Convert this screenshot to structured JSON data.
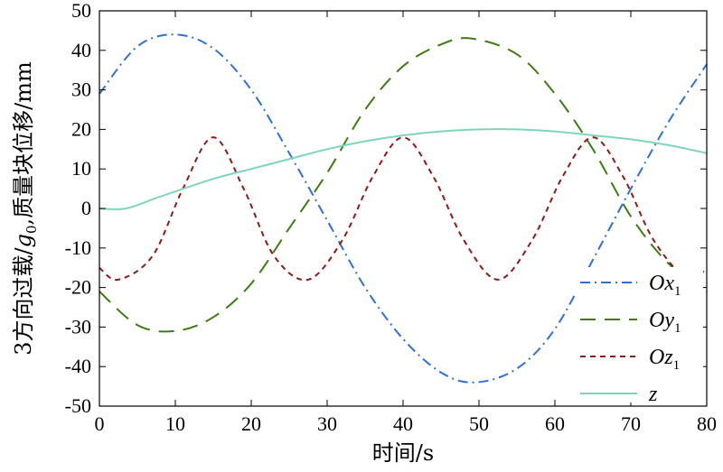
{
  "chart_data": {
    "type": "line",
    "xlabel": "时间/s",
    "ylabel_parts": [
      "3方向过载/",
      "g",
      "0",
      ",质量块位移/mm"
    ],
    "xlim": [
      0,
      80
    ],
    "ylim": [
      -50,
      50
    ],
    "x_ticks": [
      0,
      10,
      20,
      30,
      40,
      50,
      60,
      70,
      80
    ],
    "y_ticks": [
      -50,
      -40,
      -30,
      -20,
      -10,
      0,
      10,
      20,
      30,
      40,
      50
    ],
    "grid": false,
    "legend_position": "bottom-right",
    "series": [
      {
        "name": "Ox",
        "name_sub": "1",
        "color": "#2f6fd6",
        "dash": "dashdot",
        "x": [
          0,
          5,
          10,
          15,
          20,
          25,
          30,
          35,
          40,
          45,
          49.5,
          55,
          60,
          65,
          70,
          75,
          80
        ],
        "y": [
          29,
          41,
          44,
          40.5,
          30,
          14,
          -3,
          -20,
          -33,
          -41.5,
          -44,
          -40.5,
          -30.5,
          -13,
          5,
          22,
          36.5
        ]
      },
      {
        "name": "Oy",
        "name_sub": "1",
        "color": "#3f7a12",
        "dash": "longdash",
        "x": [
          0,
          5,
          10,
          15,
          20,
          25,
          30,
          35,
          40,
          45,
          49,
          55,
          60,
          65,
          70,
          75,
          80
        ],
        "y": [
          -21,
          -29.5,
          -31,
          -27.5,
          -19,
          -5,
          9,
          25,
          36,
          41.5,
          43,
          39,
          29,
          15,
          -2,
          -14,
          -21
        ]
      },
      {
        "name": "Oz",
        "name_sub": "1",
        "color": "#8c1a1a",
        "dash": "short",
        "x": [
          0,
          2.5,
          7,
          11,
          15,
          19,
          23,
          27.5,
          32,
          36,
          40,
          44,
          48,
          52.5,
          57,
          61,
          65,
          69,
          73,
          77.5,
          80
        ],
        "y": [
          -15,
          -18,
          -12,
          5,
          18,
          5,
          -12,
          -18,
          -8,
          8,
          18,
          8,
          -8,
          -18,
          -8,
          8,
          18,
          8,
          -8,
          -18,
          -15
        ]
      },
      {
        "name": "z",
        "name_sub": "",
        "color": "#7ed6b8",
        "dash": "solid",
        "x": [
          0,
          3.5,
          8,
          15,
          20,
          25,
          30,
          35,
          40,
          45,
          50,
          55,
          60,
          65,
          70,
          75,
          80
        ],
        "y": [
          0,
          0,
          3,
          7.5,
          10,
          12.5,
          15,
          17,
          18.5,
          19.5,
          20,
          20,
          19.5,
          18.5,
          17.5,
          16,
          14
        ]
      }
    ]
  }
}
